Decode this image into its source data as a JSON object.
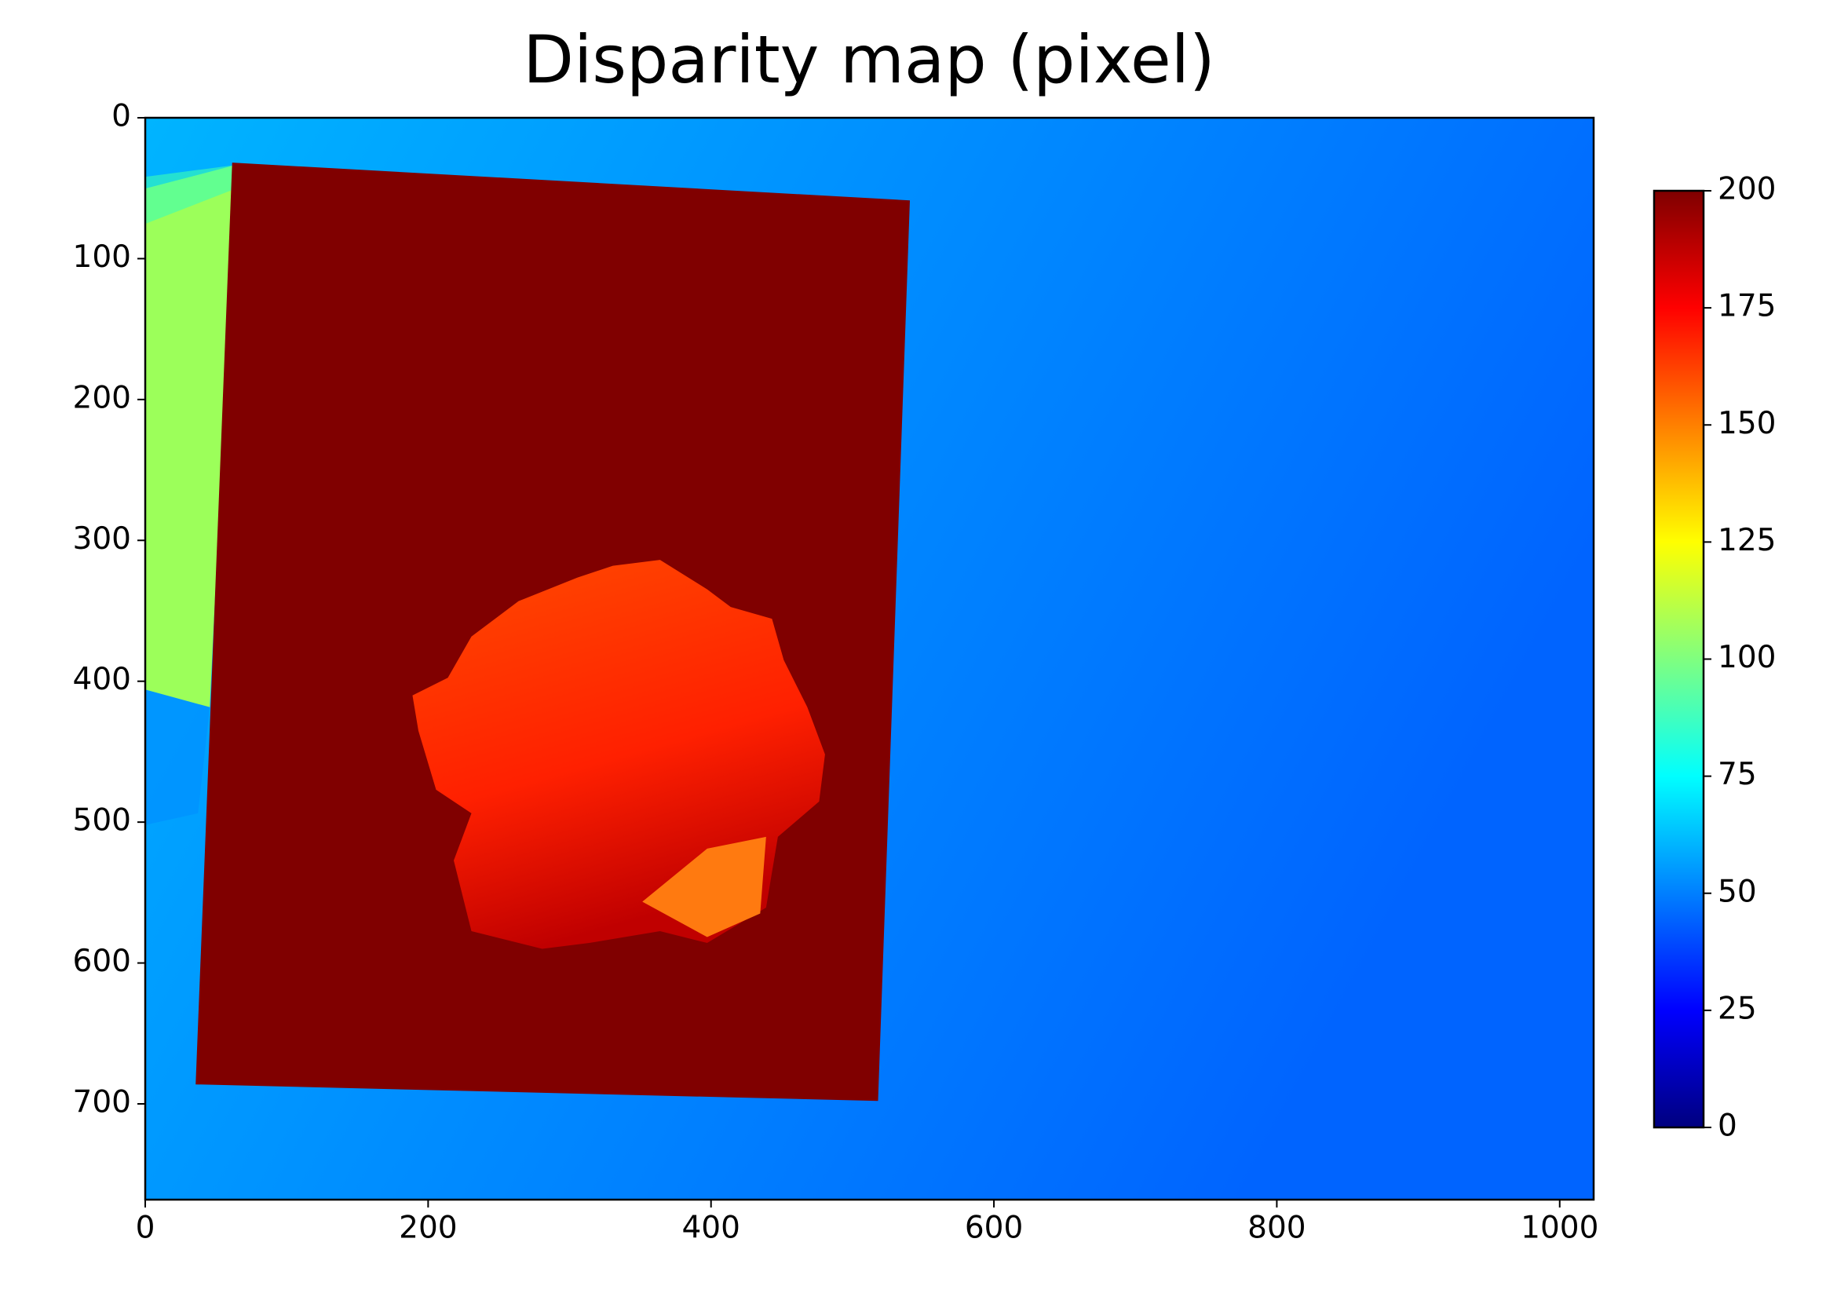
{
  "chart_data": {
    "type": "image",
    "title": "Disparity map (pixel)",
    "xlim": [
      0,
      1024
    ],
    "xticks": [
      0,
      200,
      400,
      600,
      800,
      1000
    ],
    "ylim": [
      768,
      0
    ],
    "yticks": [
      0,
      100,
      200,
      300,
      400,
      500,
      600,
      700
    ],
    "colorbar": {
      "colormap": "jet",
      "clim": [
        0,
        200
      ],
      "ticks": [
        0,
        25,
        50,
        75,
        100,
        125,
        150,
        175,
        200
      ]
    }
  }
}
